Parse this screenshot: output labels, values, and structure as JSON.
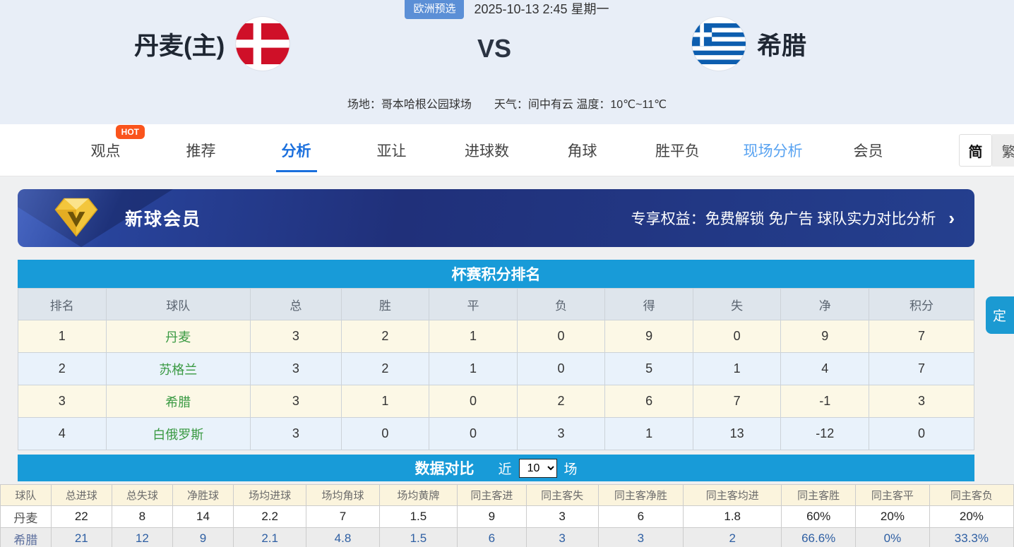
{
  "header": {
    "league_badge": "欧洲预选",
    "datetime": "2025-10-13 2:45 星期一",
    "home_team": "丹麦(主)",
    "vs": "VS",
    "away_team": "希腊",
    "venue_line": "场地：哥本哈根公园球场　　天气：间中有云 温度：10℃~11℃"
  },
  "nav": {
    "tabs": [
      {
        "label": "观点",
        "badge": "HOT"
      },
      {
        "label": "推荐"
      },
      {
        "label": "分析",
        "active": true
      },
      {
        "label": "亚让"
      },
      {
        "label": "进球数"
      },
      {
        "label": "角球"
      },
      {
        "label": "胜平负"
      },
      {
        "label": "现场分析",
        "highlight": true
      },
      {
        "label": "会员"
      }
    ],
    "lang_simplified": "简",
    "lang_traditional": "繁"
  },
  "vip_banner": {
    "title": "新球会员",
    "benefits": "专享权益：免费解锁 免广告 球队实力对比分析",
    "arrow": "›"
  },
  "standings": {
    "title": "杯赛积分排名",
    "columns": [
      "排名",
      "球队",
      "总",
      "胜",
      "平",
      "负",
      "得",
      "失",
      "净",
      "积分"
    ],
    "rows": [
      [
        "1",
        "丹麦",
        "3",
        "2",
        "1",
        "0",
        "9",
        "0",
        "9",
        "7"
      ],
      [
        "2",
        "苏格兰",
        "3",
        "2",
        "1",
        "0",
        "5",
        "1",
        "4",
        "7"
      ],
      [
        "3",
        "希腊",
        "3",
        "1",
        "0",
        "2",
        "6",
        "7",
        "-1",
        "3"
      ],
      [
        "4",
        "白俄罗斯",
        "3",
        "0",
        "0",
        "3",
        "1",
        "13",
        "-12",
        "0"
      ]
    ]
  },
  "comparison": {
    "title": "数据对比",
    "near_label": "近",
    "selected_matches": "10",
    "games_label": "场",
    "columns": [
      "球队",
      "总进球",
      "总失球",
      "净胜球",
      "场均进球",
      "场均角球",
      "场均黄牌",
      "同主客进",
      "同主客失",
      "同主客净胜",
      "同主客均进",
      "同主客胜",
      "同主客平",
      "同主客负"
    ],
    "rows": [
      [
        "丹麦",
        "22",
        "8",
        "14",
        "2.2",
        "7",
        "1.5",
        "9",
        "3",
        "6",
        "1.8",
        "60%",
        "20%",
        "20%"
      ],
      [
        "希腊",
        "21",
        "12",
        "9",
        "2.1",
        "4.8",
        "1.5",
        "6",
        "3",
        "3",
        "2",
        "66.6%",
        "0%",
        "33.3%"
      ]
    ]
  },
  "side_button_label": "定",
  "colors": {
    "header_bg": "#e8eef7",
    "accent_blue": "#189bd8",
    "active_tab_blue": "#1a6fdd",
    "hot_badge": "#fa541c",
    "banner_navy": "#20307a",
    "team_green": "#3a9a43",
    "row_cream": "#fcf8e6",
    "row_blue": "#e9f2fb"
  }
}
